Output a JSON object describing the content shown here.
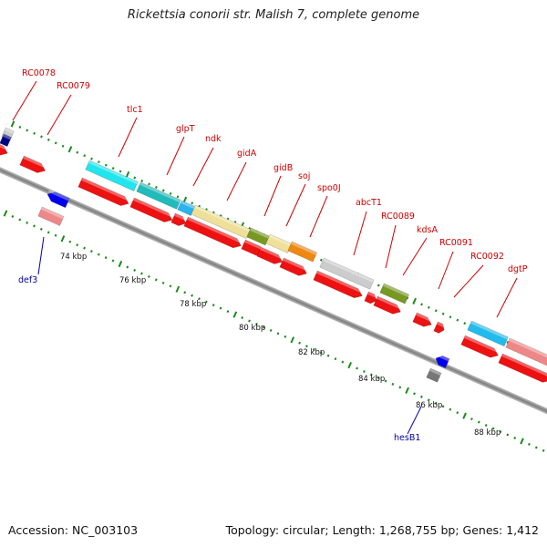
{
  "title": "Rickettsia conorii str. Malish 7, complete genome",
  "footer": {
    "accession": "Accession: NC_003103",
    "summary": "Topology: circular; Length: 1,268,755 bp; Genes: 1,412"
  },
  "colors": {
    "cds": "#ee1111",
    "backbone": "#888888",
    "dot_ticks": "#1c8a1c",
    "label_red": "#cc0000",
    "label_blue": "#0000aa"
  },
  "ticks": [
    {
      "label": "74 kbp"
    },
    {
      "label": "76 kbp"
    },
    {
      "label": "78 kbp"
    },
    {
      "label": "80 kbp"
    },
    {
      "label": "82 kbp"
    },
    {
      "label": "84 kbp"
    },
    {
      "label": "86 kbp"
    },
    {
      "label": "88 kbp"
    }
  ],
  "gene_labels": [
    {
      "name": "RC0078",
      "color": "red"
    },
    {
      "name": "RC0079",
      "color": "red"
    },
    {
      "name": "tlc1",
      "color": "red"
    },
    {
      "name": "glpT",
      "color": "red"
    },
    {
      "name": "ndk",
      "color": "red"
    },
    {
      "name": "gidA",
      "color": "red"
    },
    {
      "name": "gidB",
      "color": "red"
    },
    {
      "name": "soj",
      "color": "red"
    },
    {
      "name": "spo0J",
      "color": "red"
    },
    {
      "name": "abcT1",
      "color": "red"
    },
    {
      "name": "RC0089",
      "color": "red"
    },
    {
      "name": "kdsA",
      "color": "red"
    },
    {
      "name": "RC0091",
      "color": "red"
    },
    {
      "name": "RC0092",
      "color": "red"
    },
    {
      "name": "dgtP",
      "color": "red"
    },
    {
      "name": "def3",
      "color": "blue"
    },
    {
      "name": "hesB1",
      "color": "blue"
    }
  ]
}
